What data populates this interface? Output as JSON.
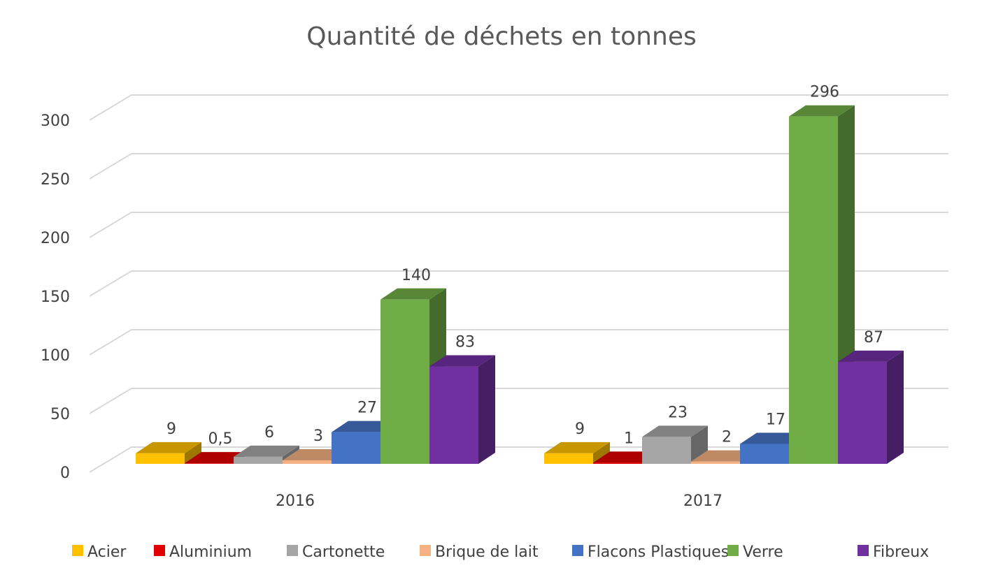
{
  "chart_data": {
    "type": "bar",
    "title": "Quantité de déchets en tonnes",
    "xlabel": "",
    "ylabel": "",
    "ylim": [
      0,
      300
    ],
    "yticks": [
      0,
      50,
      100,
      150,
      200,
      250,
      300
    ],
    "categories": [
      "2016",
      "2017"
    ],
    "series": [
      {
        "name": "Acier",
        "values": [
          9,
          9
        ],
        "labels": [
          "9",
          "9"
        ],
        "color": "#FFC000"
      },
      {
        "name": "Aluminium",
        "values": [
          0.5,
          1
        ],
        "labels": [
          "0,5",
          "1"
        ],
        "color": "#E00000"
      },
      {
        "name": "Cartonette",
        "values": [
          6,
          23
        ],
        "labels": [
          "6",
          "23"
        ],
        "color": "#A5A5A5"
      },
      {
        "name": "Brique de lait",
        "values": [
          3,
          2
        ],
        "labels": [
          "3",
          "2"
        ],
        "color": "#F4B183"
      },
      {
        "name": "Flacons Plastiques",
        "values": [
          27,
          17
        ],
        "labels": [
          "27",
          "17"
        ],
        "color": "#4472C4"
      },
      {
        "name": "Verre",
        "values": [
          140,
          296
        ],
        "labels": [
          "140",
          "296"
        ],
        "color": "#70AD47"
      },
      {
        "name": "Fibreux",
        "values": [
          83,
          87
        ],
        "labels": [
          "83",
          "87"
        ],
        "color": "#7030A0"
      }
    ],
    "grid": true,
    "legend_position": "bottom",
    "style": "3d-clustered-column"
  }
}
